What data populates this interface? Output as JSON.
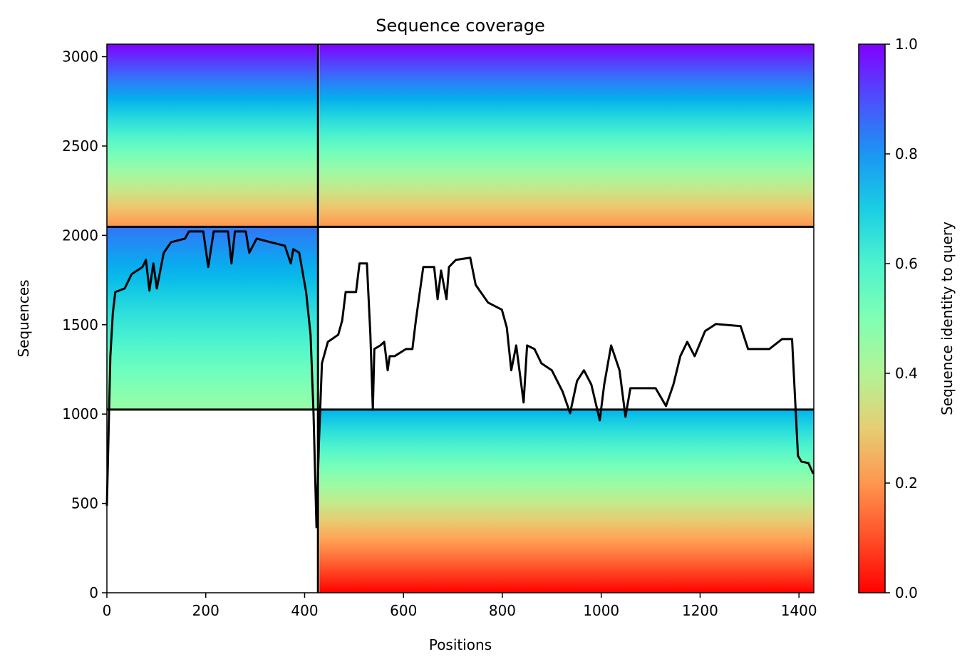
{
  "chart_data": {
    "type": "coverage",
    "title": "Sequence coverage",
    "xlabel": "Positions",
    "ylabel": "Sequences",
    "xlim": [
      0,
      1430
    ],
    "ylim": [
      0,
      3070
    ],
    "xticks": [
      0,
      200,
      400,
      600,
      800,
      1000,
      1200,
      1400
    ],
    "yticks": [
      0,
      500,
      1000,
      1500,
      2000,
      2500,
      3000
    ],
    "colormap": "rainbow_r",
    "colorbar": {
      "label": "Sequence identity to query",
      "lim": [
        0,
        1
      ],
      "ticks": [
        {
          "value": 0,
          "label": "0.0"
        },
        0.2,
        0.4,
        0.6,
        0.8,
        {
          "value": 1,
          "label": "1.0"
        }
      ]
    },
    "blocks": [
      {
        "x": [
          0,
          425
        ],
        "y": [
          2050,
          3070
        ],
        "identity": [
          0.2,
          1.0
        ]
      },
      {
        "x": [
          430,
          1430
        ],
        "y": [
          2050,
          3070
        ],
        "identity": [
          0.2,
          1.0
        ]
      },
      {
        "x": [
          0,
          425
        ],
        "y": [
          1025,
          2050
        ],
        "identity": [
          0.45,
          0.85
        ]
      },
      {
        "x": [
          430,
          1430
        ],
        "y": [
          0,
          1025
        ],
        "identity": [
          0.0,
          0.75
        ]
      }
    ],
    "dividers_x": [
      427
    ],
    "dividers_y": [
      1025,
      2048
    ],
    "series": [
      {
        "color": "#000000",
        "x": [
          0,
          7,
          12,
          17,
          36,
          50,
          72,
          79,
          86,
          94,
          101,
          115,
          130,
          158,
          166,
          195,
          205,
          216,
          245,
          252,
          259,
          281,
          288,
          303,
          331,
          360,
          372,
          377,
          389,
          403,
          412,
          418,
          424,
          429,
          435,
          447,
          468,
          476,
          483,
          504,
          511,
          526,
          533,
          538,
          541,
          553,
          561,
          568,
          572,
          582,
          605,
          618,
          625,
          640,
          662,
          669,
          676,
          687,
          692,
          706,
          735,
          746,
          771,
          799,
          809,
          818,
          828,
          843,
          850,
          865,
          879,
          900,
          922,
          937,
          951,
          965,
          980,
          997,
          1006,
          1020,
          1037,
          1049,
          1059,
          1081,
          1110,
          1131,
          1146,
          1160,
          1174,
          1189,
          1210,
          1232,
          1282,
          1297,
          1340,
          1366,
          1386,
          1398,
          1405,
          1419,
          1429
        ],
        "values": [
          487,
          1324,
          1564,
          1683,
          1703,
          1783,
          1823,
          1863,
          1691,
          1843,
          1703,
          1903,
          1962,
          1982,
          2022,
          2022,
          1823,
          2022,
          2022,
          1843,
          2022,
          2022,
          1903,
          1982,
          1962,
          1942,
          1843,
          1923,
          1903,
          1683,
          1444,
          1005,
          367,
          846,
          1284,
          1404,
          1444,
          1524,
          1683,
          1683,
          1843,
          1843,
          1444,
          1025,
          1364,
          1384,
          1404,
          1245,
          1324,
          1324,
          1364,
          1364,
          1524,
          1823,
          1823,
          1643,
          1803,
          1643,
          1823,
          1863,
          1875,
          1723,
          1624,
          1584,
          1484,
          1245,
          1384,
          1065,
          1384,
          1364,
          1284,
          1245,
          1125,
          1005,
          1185,
          1245,
          1165,
          965,
          1165,
          1384,
          1245,
          985,
          1145,
          1145,
          1145,
          1045,
          1165,
          1324,
          1404,
          1324,
          1464,
          1504,
          1492,
          1364,
          1364,
          1420,
          1420,
          766,
          734,
          726,
          666
        ]
      }
    ]
  }
}
